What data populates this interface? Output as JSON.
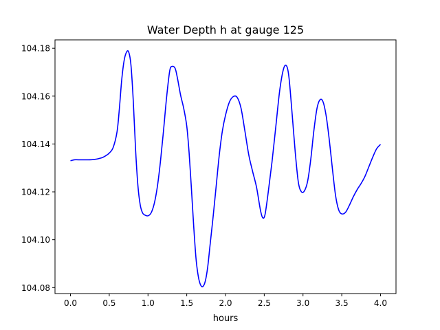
{
  "chart_data": {
    "type": "line",
    "title": "Water Depth h at gauge 125",
    "xlabel": "hours",
    "ylabel": "",
    "xlim": [
      -0.2,
      4.2
    ],
    "ylim": [
      104.0775,
      104.1835
    ],
    "xticks": [
      0.0,
      0.5,
      1.0,
      1.5,
      2.0,
      2.5,
      3.0,
      3.5,
      4.0
    ],
    "xtick_labels": [
      "0.0",
      "0.5",
      "1.0",
      "1.5",
      "2.0",
      "2.5",
      "3.0",
      "3.5",
      "4.0"
    ],
    "yticks": [
      104.08,
      104.1,
      104.12,
      104.14,
      104.16,
      104.18
    ],
    "ytick_labels": [
      "104.08",
      "104.10",
      "104.12",
      "104.14",
      "104.16",
      "104.18"
    ],
    "grid": false,
    "series": [
      {
        "color": "#0000ff",
        "x": [
          0.0,
          0.05,
          0.1,
          0.2,
          0.3,
          0.4,
          0.45,
          0.5,
          0.55,
          0.6,
          0.63,
          0.66,
          0.69,
          0.72,
          0.75,
          0.78,
          0.81,
          0.84,
          0.87,
          0.9,
          0.93,
          0.96,
          1.0,
          1.04,
          1.08,
          1.12,
          1.16,
          1.2,
          1.24,
          1.28,
          1.31,
          1.35,
          1.38,
          1.42,
          1.46,
          1.5,
          1.53,
          1.56,
          1.59,
          1.62,
          1.65,
          1.68,
          1.71,
          1.74,
          1.77,
          1.8,
          1.84,
          1.88,
          1.92,
          1.96,
          2.0,
          2.05,
          2.1,
          2.15,
          2.2,
          2.25,
          2.3,
          2.35,
          2.4,
          2.45,
          2.48,
          2.51,
          2.55,
          2.6,
          2.65,
          2.7,
          2.75,
          2.79,
          2.82,
          2.86,
          2.9,
          2.94,
          2.98,
          3.02,
          3.06,
          3.1,
          3.14,
          3.18,
          3.22,
          3.26,
          3.3,
          3.34,
          3.38,
          3.42,
          3.46,
          3.5,
          3.55,
          3.6,
          3.65,
          3.7,
          3.75,
          3.8,
          3.85,
          3.9,
          3.95,
          4.0
        ],
        "y": [
          104.133,
          104.1334,
          104.1334,
          104.1334,
          104.1335,
          104.1342,
          104.135,
          104.1362,
          104.1385,
          104.145,
          104.1545,
          104.1665,
          104.1745,
          104.1782,
          104.1785,
          104.173,
          104.158,
          104.1375,
          104.1225,
          104.1145,
          104.1112,
          104.1103,
          104.11,
          104.1112,
          104.115,
          104.122,
          104.1325,
          104.1455,
          104.1595,
          104.1705,
          104.1724,
          104.1716,
          104.1675,
          104.1605,
          104.155,
          104.1475,
          104.1365,
          104.1215,
          104.1055,
          104.092,
          104.0845,
          104.081,
          104.0805,
          104.0828,
          104.0885,
          104.0975,
          104.1095,
          104.1225,
          104.1355,
          104.1455,
          104.152,
          104.1575,
          104.1598,
          104.1595,
          104.155,
          104.1455,
          104.1355,
          104.1285,
          104.122,
          104.1125,
          104.1092,
          104.1105,
          104.1195,
          104.1325,
          104.1475,
          104.1625,
          104.1715,
          104.1725,
          104.1675,
          104.1525,
          104.1365,
          104.124,
          104.12,
          104.1205,
          104.1245,
          104.1335,
          104.1455,
          104.1548,
          104.1585,
          104.1575,
          104.1515,
          104.1415,
          104.1295,
          104.1185,
          104.1125,
          104.1108,
          104.1115,
          104.1145,
          104.118,
          104.121,
          104.1235,
          104.1265,
          104.1305,
          104.1345,
          104.138,
          104.1398
        ]
      }
    ]
  }
}
